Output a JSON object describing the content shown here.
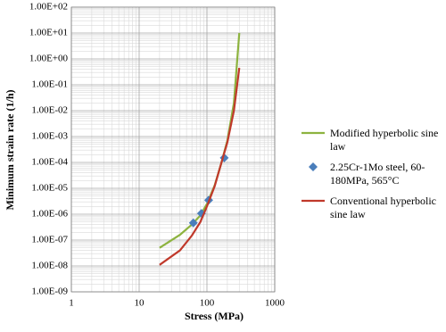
{
  "chart_data": {
    "type": "line",
    "x_label": "Stress (MPa)",
    "y_label": "Minimum strain rate (1/h)",
    "xlog": true,
    "ylog": true,
    "grid": true,
    "minor_grid": true,
    "legend": "right",
    "xlim": [
      1,
      1000
    ],
    "xticks": [
      1,
      10,
      100,
      1000
    ],
    "ylim": [
      1e-09,
      100
    ],
    "yticks": [
      {
        "value": 1e-09,
        "label": "1.00E-09"
      },
      {
        "value": 1e-08,
        "label": "1.00E-08"
      },
      {
        "value": 1e-07,
        "label": "1.00E-07"
      },
      {
        "value": 1e-06,
        "label": "1.00E-06"
      },
      {
        "value": 1e-05,
        "label": "1.00E-05"
      },
      {
        "value": 0.0001,
        "label": "1.00E-04"
      },
      {
        "value": 0.001,
        "label": "1.00E-03"
      },
      {
        "value": 0.01,
        "label": "1.00E-02"
      },
      {
        "value": 0.1,
        "label": "1.00E-01"
      },
      {
        "value": 1,
        "label": "1.00E+00"
      },
      {
        "value": 10,
        "label": "1.00E+01"
      },
      {
        "value": 100,
        "label": "1.00E+02"
      }
    ],
    "series": [
      {
        "name": "Modified hyperbolic sine law",
        "color": "#8db33f",
        "style": "line",
        "x": [
          20,
          40,
          60,
          80,
          100,
          130,
          160,
          200,
          250,
          300
        ],
        "values": [
          5e-08,
          1.6e-07,
          4e-07,
          9e-07,
          2.5e-06,
          1.3e-05,
          8e-05,
          0.0007,
          0.02,
          10
        ]
      },
      {
        "name": "2.25Cr-1Mo  steel, 60-180MPa, 565°C",
        "color": "#4a7ebb",
        "style": "markers",
        "x": [
          63,
          83,
          106,
          180
        ],
        "values": [
          4.6e-07,
          1.07e-06,
          3.5e-06,
          0.00015
        ]
      },
      {
        "name": "Conventional hyperbolic sine law",
        "color": "#c0392b",
        "style": "line",
        "x": [
          20,
          40,
          60,
          80,
          100,
          130,
          160,
          200,
          250,
          300
        ],
        "values": [
          1.1e-08,
          4e-08,
          1.5e-07,
          5e-07,
          2e-06,
          1.2e-05,
          8e-05,
          0.0006,
          0.01,
          0.45
        ]
      }
    ]
  }
}
